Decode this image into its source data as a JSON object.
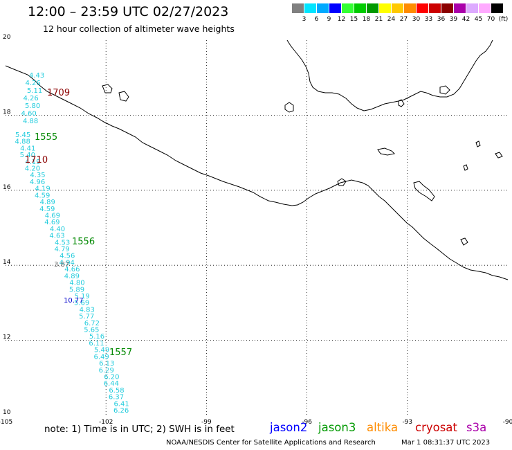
{
  "title": "12:00 – 23:59 UTC 02/27/2023",
  "subtitle": "12 hour collection of altimeter wave heights",
  "legend": {
    "colors": [
      "#808080",
      "#00e5ff",
      "#00aaff",
      "#0000ff",
      "#33ff33",
      "#00cc00",
      "#009900",
      "#ffff00",
      "#ffc800",
      "#ff8c00",
      "#ff0000",
      "#cc0000",
      "#8b0000",
      "#aa00aa",
      "#ddaaff",
      "#ffaaff",
      "#000000"
    ],
    "labels": [
      "3",
      "6",
      "9",
      "12",
      "15",
      "18",
      "21",
      "24",
      "27",
      "30",
      "33",
      "36",
      "39",
      "42",
      "45",
      "70",
      "(ft)"
    ]
  },
  "map": {
    "lon_range": [
      -105,
      -90
    ],
    "lat_range": [
      10,
      20
    ],
    "lon_ticks": [
      "-105",
      "-102",
      "-99",
      "-96",
      "-93",
      "-90"
    ],
    "lat_ticks": [
      "20",
      "18",
      "16",
      "14",
      "12",
      "10"
    ],
    "gridlines": true
  },
  "track_colors": {
    "cyan": "#22ccdd",
    "green": "#008800",
    "darkred": "#8b0000",
    "blue": "#0000cc",
    "gray": "#666666"
  },
  "time_labels": [
    {
      "text": "1709",
      "color": "darkred"
    },
    {
      "text": "1555",
      "color": "green"
    },
    {
      "text": "1710",
      "color": "darkred"
    },
    {
      "text": "1556",
      "color": "green"
    },
    {
      "text": "1557",
      "color": "green"
    }
  ],
  "swh_cyan": [
    "4.43",
    "4.26",
    "5.11",
    "4.26",
    "5.80",
    "4.60",
    "4.88",
    "5.45",
    "4.88",
    "4.41",
    "5.40",
    "4.19",
    "4.20",
    "4.35",
    "4.96",
    "4.19",
    "4.59",
    "4.89",
    "4.59",
    "4.69",
    "4.69",
    "4.40",
    "4.63",
    "4.53",
    "4.79",
    "4.56",
    "4.94",
    "4.66",
    "4.89",
    "4.80",
    "5.89",
    "5.19",
    "5.69",
    "4.83",
    "5.77",
    "6.72",
    "5.65",
    "5.16",
    "6.11",
    "5.49",
    "6.49",
    "6.13",
    "6.29",
    "6.20",
    "6.44",
    "6.58",
    "6.37",
    "6.41",
    "6.26"
  ],
  "swh_other": [
    {
      "text": "3.87",
      "color": "gray"
    },
    {
      "text": "10.77",
      "color": "blue"
    }
  ],
  "footer": {
    "note": "note: 1) Time is in UTC; 2) SWH is in feet",
    "satellites": [
      {
        "name": "jason2",
        "color": "#0000ff"
      },
      {
        "name": "jason3",
        "color": "#009900"
      },
      {
        "name": "altika",
        "color": "#ff8c00"
      },
      {
        "name": "cryosat",
        "color": "#cc0000"
      },
      {
        "name": "s3a",
        "color": "#aa00aa"
      }
    ],
    "credit": "NOAA/NESDIS Center for Satellite Applications and Research",
    "timestamp": "Mar  1 08:31:37 UTC 2023"
  }
}
